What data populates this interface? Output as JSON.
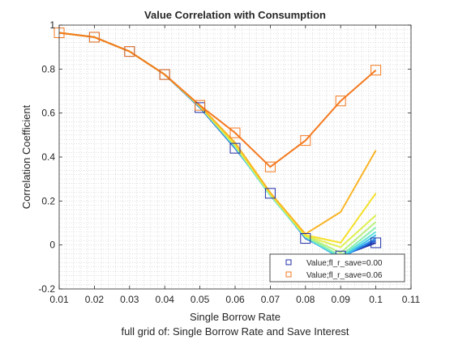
{
  "chart_data": {
    "type": "line",
    "title": "Value Correlation with Consumption",
    "xlabel": "Single Borrow Rate",
    "ylabel": "Correlation Coefficient",
    "subtitle": "full grid of: Single Borrow Rate and Save Interest",
    "xlim": [
      0.01,
      0.11
    ],
    "ylim": [
      -0.2,
      1.0
    ],
    "xticks": [
      "0.01",
      "0.02",
      "0.03",
      "0.04",
      "0.05",
      "0.06",
      "0.07",
      "0.08",
      "0.09",
      "0.1",
      "0.11"
    ],
    "yticks": [
      "-0.2",
      "0",
      "0.2",
      "0.4",
      "0.6",
      "0.8",
      "1"
    ],
    "grid": "minor-dotted",
    "legend_position": "bottom-right",
    "x": [
      0.01,
      0.02,
      0.03,
      0.04,
      0.05,
      0.06,
      0.07,
      0.08,
      0.09,
      0.1
    ],
    "series": [
      {
        "name": "Value;fl_r_save=0.00",
        "color": "#1f2fa6",
        "marker": "square",
        "values": [
          0.965,
          0.945,
          0.88,
          0.775,
          0.625,
          0.44,
          0.235,
          0.03,
          -0.05,
          0.01
        ]
      },
      {
        "color": "#1f5ad0",
        "values": [
          0.965,
          0.945,
          0.88,
          0.775,
          0.626,
          0.442,
          0.23,
          0.032,
          -0.055,
          0.02
        ]
      },
      {
        "color": "#2a8ee8",
        "values": [
          0.965,
          0.945,
          0.88,
          0.775,
          0.627,
          0.443,
          0.228,
          0.033,
          -0.06,
          0.03
        ]
      },
      {
        "color": "#3cc0ee",
        "values": [
          0.965,
          0.945,
          0.88,
          0.775,
          0.628,
          0.445,
          0.225,
          0.035,
          -0.06,
          0.045
        ]
      },
      {
        "color": "#5fe0d8",
        "values": [
          0.965,
          0.945,
          0.88,
          0.775,
          0.629,
          0.447,
          0.225,
          0.036,
          -0.055,
          0.06
        ]
      },
      {
        "color": "#8af0b0",
        "values": [
          0.965,
          0.945,
          0.88,
          0.775,
          0.63,
          0.45,
          0.228,
          0.038,
          -0.05,
          0.08
        ]
      },
      {
        "color": "#b8f080",
        "values": [
          0.965,
          0.945,
          0.88,
          0.775,
          0.631,
          0.452,
          0.23,
          0.04,
          -0.035,
          0.105
        ]
      },
      {
        "color": "#dff050",
        "values": [
          0.965,
          0.945,
          0.88,
          0.775,
          0.632,
          0.455,
          0.233,
          0.042,
          -0.01,
          0.135
        ]
      },
      {
        "color": "#f6e02a",
        "values": [
          0.965,
          0.945,
          0.88,
          0.775,
          0.633,
          0.46,
          0.236,
          0.045,
          0.01,
          0.235
        ]
      },
      {
        "color": "#f9b528",
        "values": [
          0.965,
          0.945,
          0.88,
          0.775,
          0.634,
          0.465,
          0.238,
          0.05,
          0.15,
          0.43
        ]
      },
      {
        "name": "Value;fl_r_save=0.06",
        "color": "#f47a20",
        "marker": "square",
        "values": [
          0.965,
          0.945,
          0.88,
          0.775,
          0.635,
          0.51,
          0.355,
          0.475,
          0.655,
          0.795
        ]
      }
    ]
  }
}
